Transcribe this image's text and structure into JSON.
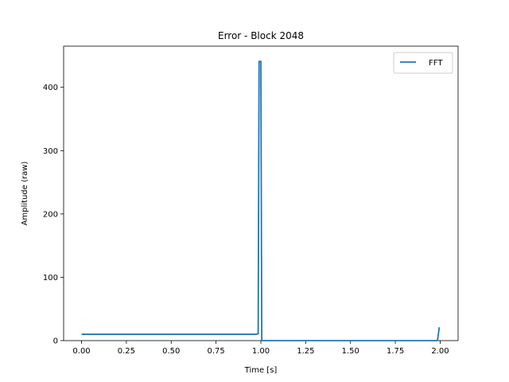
{
  "chart_data": {
    "type": "line",
    "title": "Error - Block 2048",
    "xlabel": "Time [s]",
    "ylabel": "Amplitude (raw)",
    "xlim": [
      -0.1,
      2.1
    ],
    "ylim": [
      0,
      465
    ],
    "xticks": [
      0.0,
      0.25,
      0.5,
      0.75,
      1.0,
      1.25,
      1.5,
      1.75,
      2.0
    ],
    "xtick_labels": [
      "0.00",
      "0.25",
      "0.50",
      "0.75",
      "1.00",
      "1.25",
      "1.50",
      "1.75",
      "2.00"
    ],
    "yticks": [
      0,
      100,
      200,
      300,
      400
    ],
    "ytick_labels": [
      "0",
      "100",
      "200",
      "300",
      "400"
    ],
    "grid": false,
    "legend_position": "top-right",
    "series": [
      {
        "name": "FFT",
        "color": "#1f77b4",
        "x": [
          0.0,
          0.975,
          0.985,
          0.99,
          0.995,
          1.0,
          1.005,
          1.5,
          1.985,
          1.995
        ],
        "y": [
          10,
          10,
          11,
          441,
          441,
          441,
          0,
          0,
          0,
          21
        ]
      }
    ]
  }
}
